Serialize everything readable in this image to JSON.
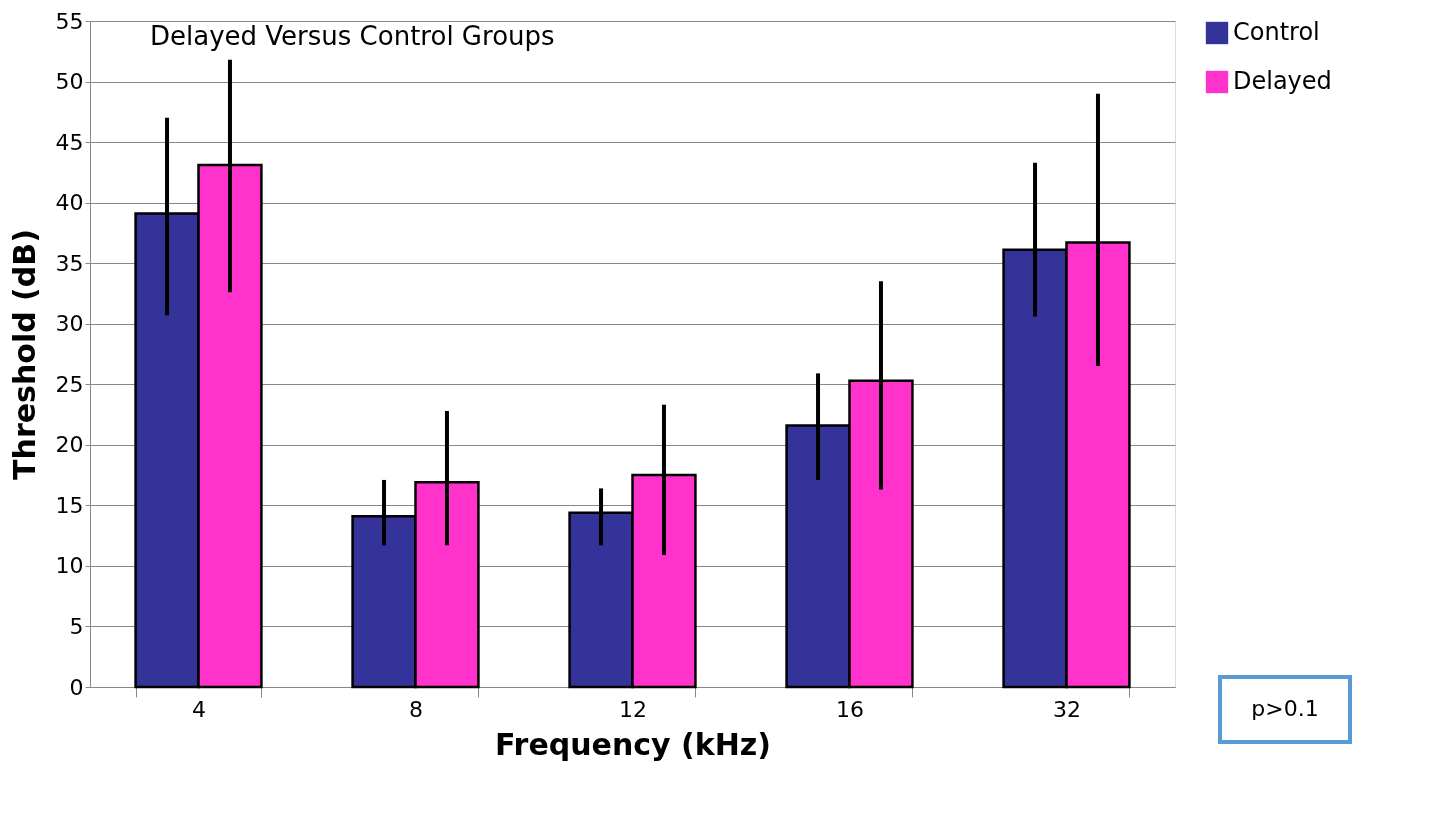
{
  "chart_data": {
    "type": "bar",
    "title": "Delayed Versus Control Groups",
    "xlabel": "Frequency (kHz)",
    "ylabel": "Threshold (dB)",
    "categories": [
      "4",
      "8",
      "12",
      "16",
      "32"
    ],
    "series": [
      {
        "name": "Control",
        "color": "#333399",
        "values": [
          39.1,
          14.1,
          14.4,
          21.6,
          36.1
        ],
        "errors": [
          [
            30.7,
            47.0
          ],
          [
            11.7,
            17.1
          ],
          [
            11.7,
            16.4
          ],
          [
            17.1,
            25.9
          ],
          [
            30.6,
            43.3
          ]
        ]
      },
      {
        "name": "Delayed",
        "color": "#ff33cc",
        "values": [
          43.1,
          16.9,
          17.5,
          25.3,
          36.7
        ],
        "errors": [
          [
            32.6,
            51.8
          ],
          [
            11.7,
            22.8
          ],
          [
            10.9,
            23.3
          ],
          [
            16.3,
            33.5
          ],
          [
            26.5,
            49.0
          ]
        ]
      }
    ],
    "ylim": [
      0,
      55
    ],
    "yticks": [
      0,
      5,
      10,
      15,
      20,
      25,
      30,
      35,
      40,
      45,
      50,
      55
    ],
    "grid": "y",
    "legend": "right",
    "annotations": [
      "p>0.1"
    ]
  }
}
